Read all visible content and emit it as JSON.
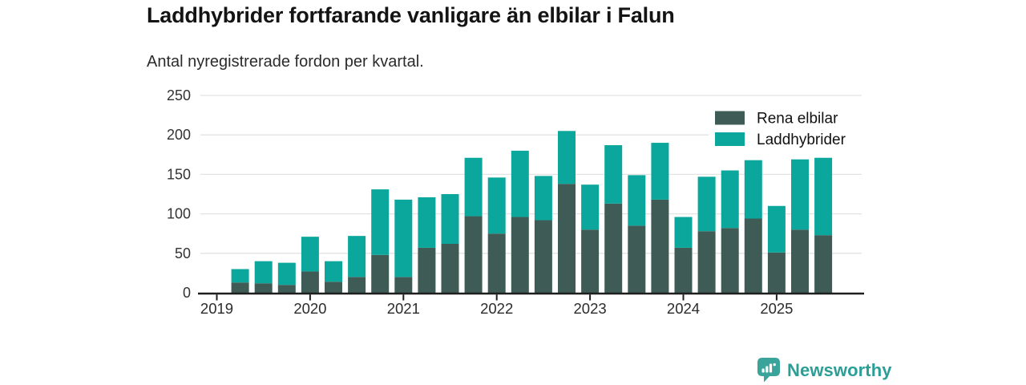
{
  "header": {
    "title": "Laddhybrider fortfarande vanligare än elbilar i Falun",
    "subtitle": "Antal nyregistrerade fordon per kvartal."
  },
  "footer": {
    "brand": "Newsworthy",
    "brand_color": "#2b9f96",
    "logo_icon": "speech-bubble-bar-chart-icon",
    "logo_color": "#3aa49b"
  },
  "chart_data": {
    "type": "bar",
    "stacked": true,
    "title": "Laddhybrider fortfarande vanligare än elbilar i Falun",
    "subtitle": "Antal nyregistrerade fordon per kvartal.",
    "xlabel": "",
    "ylabel": "",
    "ylim": [
      0,
      250
    ],
    "y_ticks": [
      0,
      50,
      100,
      150,
      200,
      250
    ],
    "x_tick_labels": [
      "2019",
      "2020",
      "2021",
      "2022",
      "2023",
      "2024",
      "2025"
    ],
    "grid": "horizontal-light",
    "gridline_color": "#e3e3e3",
    "axis_color": "#1f1f1f",
    "tick_label_color": "#333333",
    "legend_position": "top-right",
    "categories": [
      "2019-Q2",
      "2019-Q3",
      "2019-Q4",
      "2020-Q1",
      "2020-Q2",
      "2020-Q3",
      "2020-Q4",
      "2021-Q1",
      "2021-Q2",
      "2021-Q3",
      "2021-Q4",
      "2022-Q1",
      "2022-Q2",
      "2022-Q3",
      "2022-Q4",
      "2023-Q1",
      "2023-Q2",
      "2023-Q3",
      "2023-Q4",
      "2024-Q1",
      "2024-Q2",
      "2024-Q3",
      "2024-Q4",
      "2025-Q1",
      "2025-Q2",
      "2025-Q3"
    ],
    "series": [
      {
        "name": "Rena elbilar",
        "color": "#3e5c55",
        "values": [
          13,
          12,
          10,
          27,
          14,
          20,
          48,
          20,
          57,
          62,
          97,
          75,
          96,
          92,
          138,
          80,
          113,
          85,
          118,
          57,
          78,
          82,
          94,
          51,
          80,
          73
        ]
      },
      {
        "name": "Laddhybrider",
        "color": "#0ba79c",
        "values": [
          17,
          28,
          28,
          44,
          26,
          52,
          83,
          98,
          64,
          63,
          74,
          71,
          84,
          56,
          67,
          57,
          74,
          64,
          72,
          39,
          69,
          73,
          74,
          59,
          89,
          98
        ]
      }
    ]
  }
}
